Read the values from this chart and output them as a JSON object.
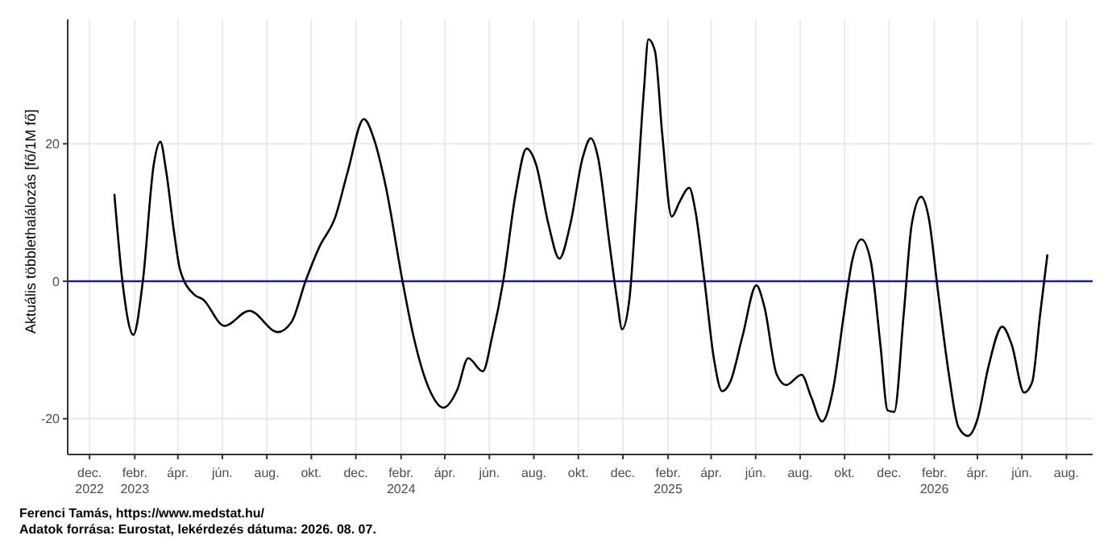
{
  "chart_data": {
    "type": "line",
    "ylabel": "Aktuális többlethalálozás [fő/1M fő]",
    "x": [
      "2023-01-04",
      "2023-01-15",
      "2023-01-30",
      "2023-02-12",
      "2023-02-27",
      "2023-03-08",
      "2023-03-16",
      "2023-03-27",
      "2023-04-04",
      "2023-04-24",
      "2023-05-05",
      "2023-06-04",
      "2023-07-08",
      "2023-08-16",
      "2023-09-04",
      "2023-09-23",
      "2023-10-12",
      "2023-11-03",
      "2023-11-20",
      "2023-12-12",
      "2023-12-27",
      "2024-01-11",
      "2024-02-03",
      "2024-02-18",
      "2024-03-11",
      "2024-03-30",
      "2024-04-18",
      "2024-05-03",
      "2024-05-23",
      "2024-06-05",
      "2024-06-20",
      "2024-07-07",
      "2024-07-22",
      "2024-08-04",
      "2024-08-21",
      "2024-09-05",
      "2024-09-20",
      "2024-10-07",
      "2024-10-18",
      "2024-10-28",
      "2024-11-12",
      "2024-11-23",
      "2024-11-30",
      "2024-12-10",
      "2024-12-19",
      "2024-12-30",
      "2025-01-05",
      "2025-01-14",
      "2025-01-24",
      "2025-02-06",
      "2025-02-17",
      "2025-03-02",
      "2025-03-10",
      "2025-03-23",
      "2025-04-05",
      "2025-04-16",
      "2025-04-27",
      "2025-05-14",
      "2025-06-02",
      "2025-06-13",
      "2025-06-30",
      "2025-07-13",
      "2025-08-03",
      "2025-08-16",
      "2025-08-31",
      "2025-09-15",
      "2025-09-30",
      "2025-10-11",
      "2025-10-24",
      "2025-11-06",
      "2025-11-19",
      "2025-11-29",
      "2025-12-08",
      "2025-12-21",
      "2026-01-01",
      "2026-01-14",
      "2026-01-24",
      "2026-02-06",
      "2026-02-21",
      "2026-03-06",
      "2026-03-19",
      "2026-04-01",
      "2026-04-16",
      "2026-05-05",
      "2026-05-18",
      "2026-06-04",
      "2026-06-15",
      "2026-06-26",
      "2026-07-06"
    ],
    "series": [
      {
        "color": "#000000",
        "values": [
          12.7,
          0,
          -7.8,
          0,
          17,
          20.3,
          16,
          7,
          1.7,
          -2,
          -2.6,
          -6.5,
          -4.3,
          -7.4,
          -5.9,
          0,
          5,
          9.4,
          16,
          23.6,
          20.3,
          13.8,
          0,
          -8,
          -15.8,
          -18.4,
          -15.8,
          -11.2,
          -13.1,
          -8,
          0,
          12.7,
          19.3,
          17,
          8.3,
          3.3,
          8.3,
          18,
          20.8,
          18,
          6,
          -2.6,
          -7,
          -2.6,
          10.5,
          28,
          35.2,
          33.5,
          21.4,
          9.4,
          11.6,
          13.6,
          10.5,
          0,
          -11.4,
          -16,
          -14.7,
          -8,
          -0.6,
          -3.7,
          -13.6,
          -15.1,
          -13.6,
          -16.8,
          -20.4,
          -15.8,
          -4.8,
          2.8,
          6.1,
          2.8,
          -9.2,
          -18.8,
          -19,
          -4.8,
          8.3,
          12.3,
          9.4,
          -1.5,
          -13.6,
          -21.2,
          -22.5,
          -20.1,
          -12.5,
          -6.6,
          -9.2,
          -16.2,
          -14.7,
          -4.8,
          3.9
        ]
      }
    ],
    "xlim": [
      "2022-11-01",
      "2026-09-06"
    ],
    "xticks": [
      {
        "value": "2022-12-01",
        "label": "dec.\n2022"
      },
      {
        "value": "2023-02-01",
        "label": "febr.\n2023"
      },
      {
        "value": "2023-04-01",
        "label": "ápr."
      },
      {
        "value": "2023-06-01",
        "label": "jún."
      },
      {
        "value": "2023-08-01",
        "label": "aug."
      },
      {
        "value": "2023-10-01",
        "label": "okt."
      },
      {
        "value": "2023-12-01",
        "label": "dec."
      },
      {
        "value": "2024-02-01",
        "label": "febr.\n2024"
      },
      {
        "value": "2024-04-01",
        "label": "ápr."
      },
      {
        "value": "2024-06-01",
        "label": "jún."
      },
      {
        "value": "2024-08-01",
        "label": "aug."
      },
      {
        "value": "2024-10-01",
        "label": "okt."
      },
      {
        "value": "2024-12-01",
        "label": "dec."
      },
      {
        "value": "2025-02-01",
        "label": "febr.\n2025"
      },
      {
        "value": "2025-04-01",
        "label": "ápr."
      },
      {
        "value": "2025-06-01",
        "label": "jún."
      },
      {
        "value": "2025-08-01",
        "label": "aug."
      },
      {
        "value": "2025-10-01",
        "label": "okt."
      },
      {
        "value": "2025-12-01",
        "label": "dec."
      },
      {
        "value": "2026-02-01",
        "label": "febr.\n2026"
      },
      {
        "value": "2026-04-01",
        "label": "ápr."
      },
      {
        "value": "2026-06-01",
        "label": "jún."
      },
      {
        "value": "2026-08-01",
        "label": "aug."
      }
    ],
    "ylim": [
      -25.2,
      38.1
    ],
    "yticks": [
      -20,
      0,
      20
    ],
    "grid": true,
    "marker": "none",
    "ref_lines": [
      {
        "axis": "y",
        "value": 0,
        "color": "#1c1ca8"
      }
    ],
    "annotations": [
      "Ferenci Tamás, https://www.medstat.hu/",
      "Adatok forrása: Eurostat, lekérdezés dátuma: 2026. 08. 07."
    ]
  }
}
